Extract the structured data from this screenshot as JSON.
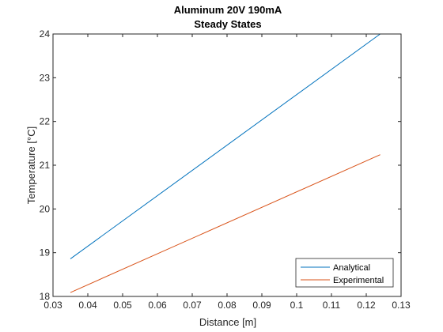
{
  "chart_data": {
    "type": "line",
    "title": [
      "Aluminum 20V 190mA",
      "Steady States"
    ],
    "xlabel": "Distance [m]",
    "ylabel": "Temperature [°C]",
    "xlim": [
      0.03,
      0.13
    ],
    "ylim": [
      18,
      24
    ],
    "xticks": [
      "0.03",
      "0.04",
      "0.05",
      "0.06",
      "0.07",
      "0.08",
      "0.09",
      "0.1",
      "0.11",
      "0.12",
      "0.13"
    ],
    "yticks": [
      "18",
      "19",
      "20",
      "21",
      "22",
      "23",
      "24"
    ],
    "grid": false,
    "legend_position": "bottom-right",
    "series": [
      {
        "name": "Analytical",
        "color": "#0072BD",
        "x": [
          0.035,
          0.124
        ],
        "y": [
          18.86,
          24.0
        ]
      },
      {
        "name": "Experimental",
        "color": "#D95319",
        "x": [
          0.035,
          0.124
        ],
        "y": [
          18.09,
          21.24
        ]
      }
    ]
  }
}
